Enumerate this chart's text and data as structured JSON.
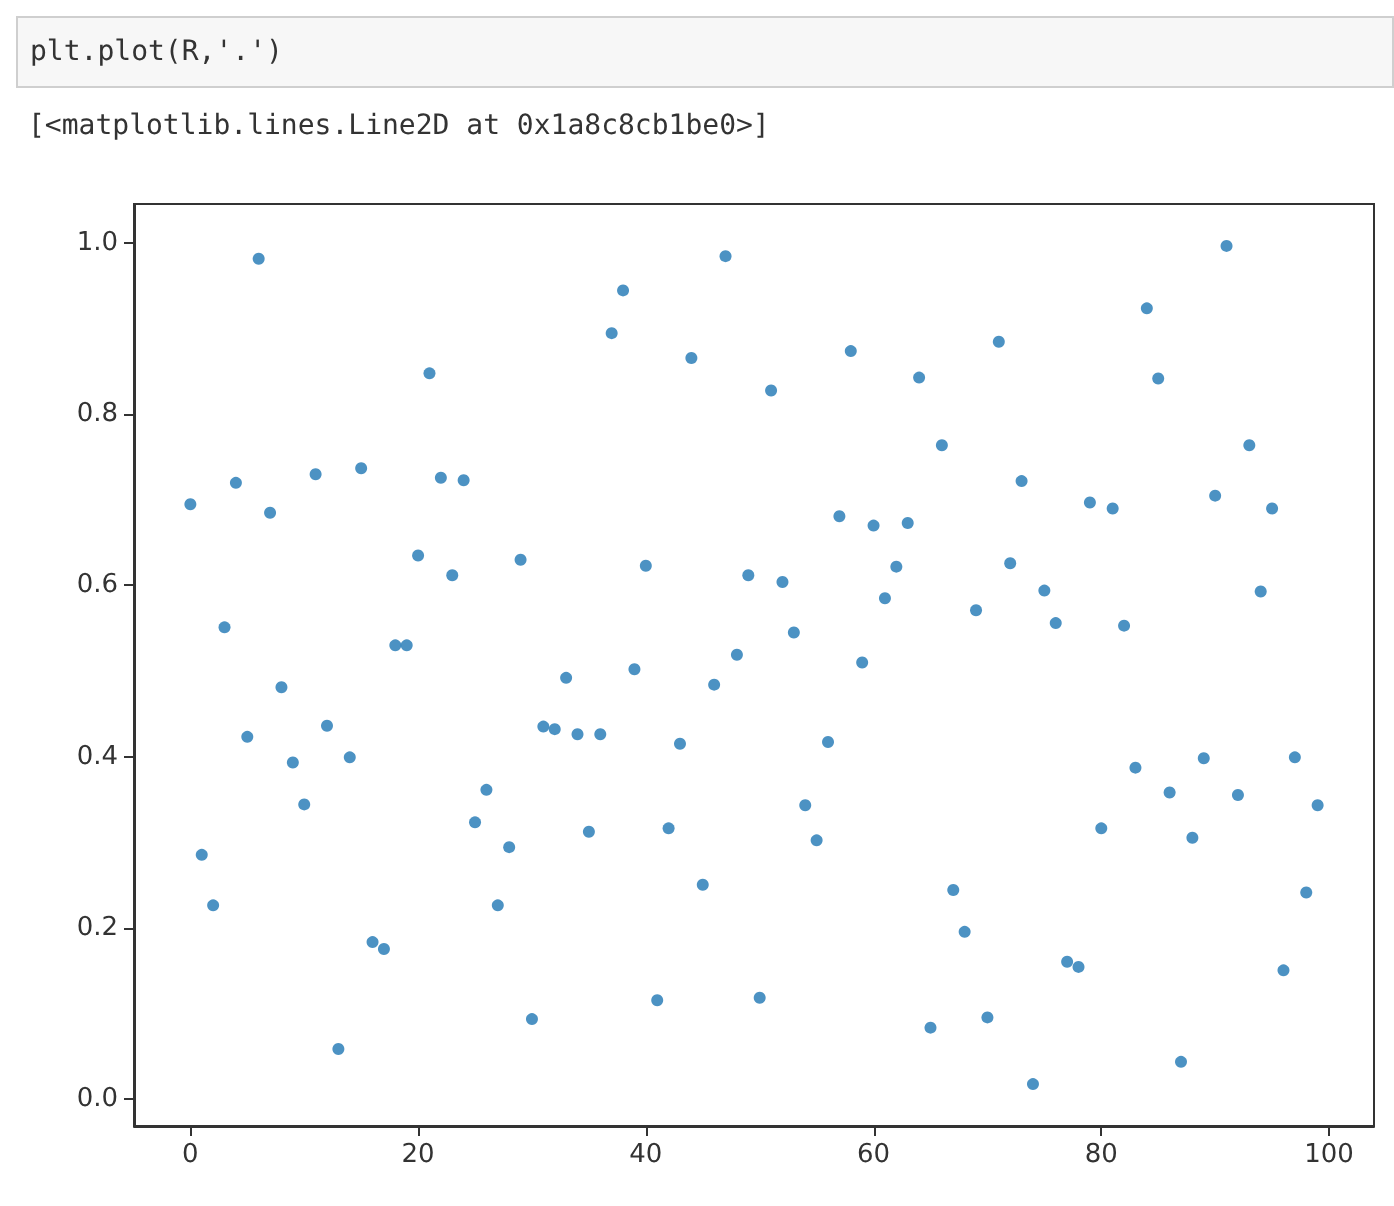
{
  "chart_data": {
    "type": "scatter",
    "annotations": [
      "plt.plot(R,'.')",
      "[<matplotlib.lines.Line2D at 0x1a8c8cb1be0>]"
    ],
    "x": [
      0,
      1,
      2,
      3,
      4,
      5,
      6,
      7,
      8,
      9,
      10,
      11,
      12,
      13,
      14,
      15,
      16,
      17,
      18,
      19,
      20,
      21,
      22,
      23,
      24,
      25,
      26,
      27,
      28,
      29,
      30,
      31,
      32,
      33,
      34,
      35,
      36,
      37,
      38,
      39,
      40,
      41,
      42,
      43,
      44,
      45,
      46,
      47,
      48,
      49,
      50,
      51,
      52,
      53,
      54,
      55,
      56,
      57,
      58,
      59,
      60,
      61,
      62,
      63,
      64,
      65,
      66,
      67,
      68,
      69,
      70,
      71,
      72,
      73,
      74,
      75,
      76,
      77,
      78,
      79,
      80,
      81,
      82,
      83,
      84,
      85,
      86,
      87,
      88,
      89,
      90,
      91,
      92,
      93,
      94,
      95,
      96,
      97,
      98,
      99
    ],
    "values": [
      0.695,
      0.285,
      0.226,
      0.551,
      0.72,
      0.423,
      0.982,
      0.685,
      0.481,
      0.393,
      0.344,
      0.73,
      0.436,
      0.058,
      0.399,
      0.737,
      0.183,
      0.175,
      0.53,
      0.53,
      0.635,
      0.848,
      0.726,
      0.612,
      0.723,
      0.323,
      0.361,
      0.226,
      0.294,
      0.63,
      0.093,
      0.435,
      0.432,
      0.492,
      0.426,
      0.312,
      0.426,
      0.895,
      0.945,
      0.502,
      0.623,
      0.115,
      0.316,
      0.415,
      0.866,
      0.25,
      0.484,
      0.985,
      0.519,
      0.612,
      0.118,
      0.828,
      0.604,
      0.545,
      0.343,
      0.302,
      0.417,
      0.681,
      0.874,
      0.51,
      0.67,
      0.585,
      0.622,
      0.673,
      0.843,
      0.083,
      0.764,
      0.244,
      0.195,
      0.571,
      0.095,
      0.885,
      0.626,
      0.722,
      0.017,
      0.594,
      0.556,
      0.16,
      0.154,
      0.697,
      0.316,
      0.69,
      0.553,
      0.387,
      0.924,
      0.842,
      0.358,
      0.043,
      0.305,
      0.398,
      0.705,
      0.997,
      0.355,
      0.764,
      0.593,
      0.69,
      0.15,
      0.399,
      0.241,
      0.343
    ],
    "color": "#1f77b4",
    "marker": "circle",
    "xlim": [
      -4.95,
      103.95
    ],
    "xticks": [
      0,
      20,
      40,
      60,
      80,
      100
    ],
    "ylim": [
      -0.032,
      1.046
    ],
    "yticks": [
      {
        "value": 0,
        "label": "0.0"
      },
      0.2,
      0.4,
      0.6,
      0.8,
      {
        "value": 1,
        "label": "1.0"
      }
    ],
    "grid": false
  }
}
